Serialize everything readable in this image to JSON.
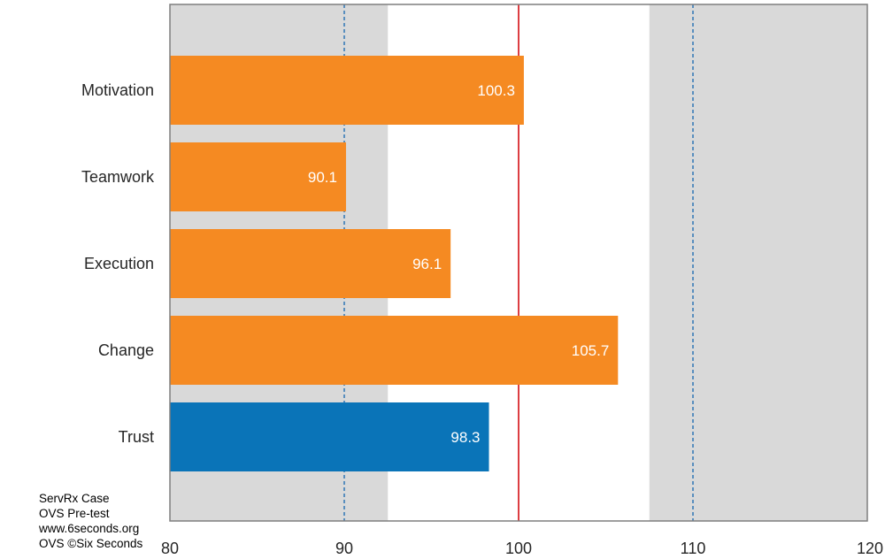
{
  "chart_data": {
    "type": "bar",
    "orientation": "horizontal",
    "categories": [
      "Motivation",
      "Teamwork",
      "Execution",
      "Change",
      "Trust"
    ],
    "values": [
      100.3,
      90.1,
      96.1,
      105.7,
      98.3
    ],
    "bar_colors": [
      "#F58A22",
      "#F58A22",
      "#F58A22",
      "#F58A22",
      "#0A74B8"
    ],
    "data_labels": [
      "100.3",
      "90.1",
      "96.1",
      "105.7",
      "98.3"
    ],
    "xlim": [
      80,
      120
    ],
    "x_ticks": [
      "80",
      "90",
      "100",
      "110",
      "120"
    ],
    "shaded_bands": [
      [
        80,
        92.5
      ],
      [
        107.5,
        120
      ]
    ],
    "band_color": "#D9D9D9",
    "reference_line": 100,
    "reference_line_color": "#D9292E",
    "dashed_lines": [
      90,
      110
    ],
    "dashed_line_color": "#2E75B6",
    "grid": false,
    "legend": "none"
  },
  "notes": [
    "ServRx Case",
    "OVS Pre-test",
    "www.6seconds.org",
    "OVS ©Six Seconds"
  ]
}
